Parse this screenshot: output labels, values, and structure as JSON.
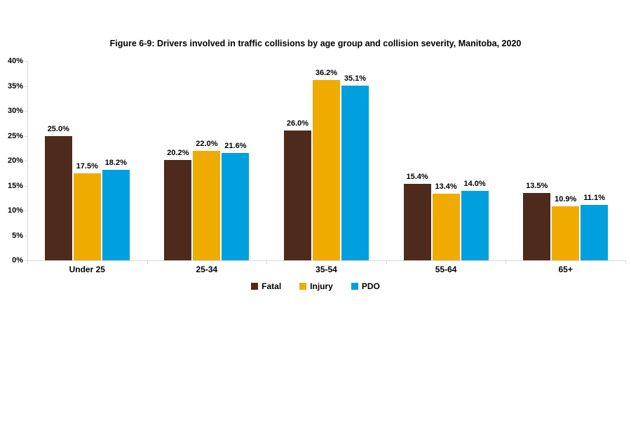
{
  "figure": {
    "title": "Figure 6-9: Drivers involved in traffic collisions by age group and collision severity, Manitoba, 2020"
  },
  "chart_data": {
    "type": "bar",
    "title": "Figure 6-9: Drivers involved in traffic collisions by age group and collision severity, Manitoba, 2020",
    "categories": [
      "Under 25",
      "25-34",
      "35-54",
      "55-64",
      "65+"
    ],
    "series": [
      {
        "name": "Fatal",
        "color": "#4e2a1d",
        "values": [
          25.0,
          20.2,
          26.0,
          15.4,
          13.5
        ]
      },
      {
        "name": "Injury",
        "color": "#f0ab00",
        "values": [
          17.5,
          22.0,
          36.2,
          13.4,
          10.9
        ]
      },
      {
        "name": "PDO",
        "color": "#00a0df",
        "values": [
          18.2,
          21.6,
          35.1,
          14.0,
          11.1
        ]
      }
    ],
    "data_labels": [
      [
        "25.0%",
        "20.2%",
        "26.0%",
        "15.4%",
        "13.5%"
      ],
      [
        "17.5%",
        "22.0%",
        "36.2%",
        "13.4%",
        "10.9%"
      ],
      [
        "18.2%",
        "21.6%",
        "35.1%",
        "14.0%",
        "11.1%"
      ]
    ],
    "xlabel": "",
    "ylabel": "",
    "ylim": [
      0,
      40
    ],
    "ytick_step": 5,
    "ytick_labels": [
      "0%",
      "5%",
      "10%",
      "15%",
      "20%",
      "25%",
      "30%",
      "35%",
      "40%"
    ],
    "value_suffix": "%",
    "grid": "off",
    "legend_position": "bottom",
    "colors": {
      "axis": "#d9d9d9",
      "text": "#000000",
      "background": "#ffffff"
    }
  }
}
